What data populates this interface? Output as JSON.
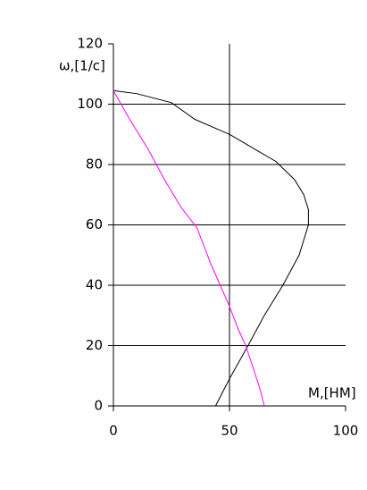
{
  "chart_data": {
    "type": "line",
    "y_label": "ω,[1/c]",
    "x_label": "M,[HM]",
    "xlim": [
      0,
      100
    ],
    "xticks": [
      0,
      50,
      100
    ],
    "ylim": [
      0,
      120
    ],
    "yticks": [
      0,
      20,
      40,
      60,
      80,
      100,
      120
    ],
    "grid": true,
    "series": [
      {
        "color": "#000000",
        "x": [
          0,
          10,
          25,
          35,
          50,
          60,
          70,
          78,
          82,
          84,
          84,
          82,
          80,
          73,
          65,
          58,
          50,
          44
        ],
        "values": [
          104.5,
          103.5,
          100.5,
          95,
          90,
          85.5,
          81,
          75,
          70,
          65,
          60,
          55,
          50,
          40,
          30,
          20,
          9,
          0
        ]
      },
      {
        "color": "#ff00ff",
        "x": [
          0,
          7,
          15,
          22,
          29,
          36,
          42,
          46,
          50,
          54,
          57,
          60,
          63,
          65
        ],
        "values": [
          104.5,
          95,
          85,
          75,
          66,
          59,
          47,
          40,
          33,
          25,
          20,
          13,
          6,
          0
        ]
      }
    ]
  }
}
